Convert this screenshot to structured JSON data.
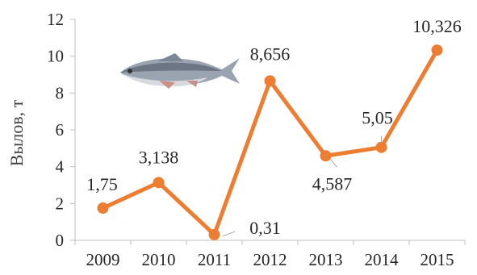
{
  "chart_data": {
    "type": "line",
    "categories": [
      "2009",
      "2010",
      "2011",
      "2012",
      "2013",
      "2014",
      "2015"
    ],
    "values": [
      1.75,
      3.138,
      0.31,
      8.656,
      4.587,
      5.05,
      10.326
    ],
    "data_labels": [
      "1,75",
      "3,138",
      "0,31",
      "8,656",
      "4,587",
      "5,05",
      "10,326"
    ],
    "y_tick_labels": [
      "0",
      "2",
      "4",
      "6",
      "8",
      "10",
      "12"
    ],
    "title": "",
    "xlabel": "",
    "ylabel": "Вылов, т",
    "ylim": [
      0,
      12
    ],
    "grid": false,
    "legend": "none"
  },
  "colors": {
    "line": "#ED7D31",
    "axis": "#BFBFBF",
    "leader": "#A6A6A6",
    "text": "#262626"
  },
  "icons": {
    "decoration": "fish-icon"
  }
}
